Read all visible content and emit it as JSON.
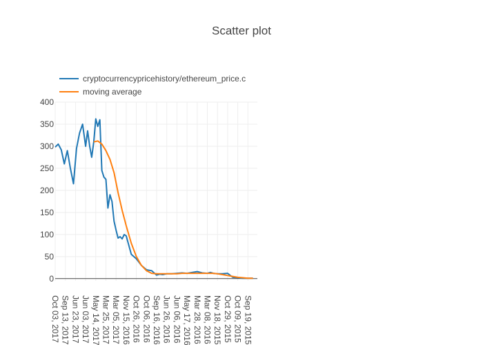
{
  "chart_data": {
    "type": "line",
    "title": "Scatter plot",
    "xlabel": "",
    "ylabel": "",
    "x_axis_reversed": true,
    "x_tick_labels": [
      "Oct 03, 2017",
      "Sep 13, 2017",
      "Jun 23, 2017",
      "Jun 03, 2017",
      "May 14, 2017",
      "Mar 25, 2017",
      "Mar 05, 2017",
      "Nov 15, 2016",
      "Oct 26, 2016",
      "Oct 06, 2016",
      "Sep 16, 2016",
      "Jun 26, 2016",
      "Jun 06, 2016",
      "May 17, 2016",
      "Mar 28, 2016",
      "Mar 08, 2016",
      "Nov 18, 2015",
      "Oct 29, 2015",
      "Oct 09, 2015",
      "Sep 19, 2015"
    ],
    "y_ticks": [
      0,
      50,
      100,
      150,
      200,
      250,
      300,
      350,
      400
    ],
    "ylim": [
      -5,
      400
    ],
    "grid": true,
    "legend_position": "top-left",
    "series": [
      {
        "name": "cryptocurrencypricehistory/ethereum_price.c",
        "color": "#1f77b4",
        "x_index": [
          0,
          0.3,
          0.6,
          0.9,
          1.2,
          1.5,
          1.8,
          2.1,
          2.4,
          2.7,
          3.0,
          3.2,
          3.4,
          3.6,
          3.8,
          4.0,
          4.2,
          4.4,
          4.6,
          4.8,
          5.0,
          5.2,
          5.4,
          5.6,
          5.8,
          6.0,
          6.2,
          6.4,
          6.6,
          6.8,
          7.0,
          7.5,
          8.0,
          8.5,
          9.0,
          9.5,
          10.0,
          10.3,
          10.6,
          11.0,
          11.5,
          12.0,
          12.5,
          13.0,
          13.5,
          14.0,
          14.5,
          15.0,
          15.3,
          15.6,
          16.0,
          16.5,
          17.0,
          17.5,
          18.0,
          18.5,
          19.0,
          19.5
        ],
        "values": [
          298,
          305,
          292,
          260,
          290,
          250,
          215,
          295,
          330,
          350,
          300,
          335,
          300,
          275,
          310,
          362,
          345,
          360,
          245,
          230,
          225,
          160,
          190,
          175,
          130,
          110,
          92,
          95,
          90,
          100,
          97,
          55,
          45,
          30,
          20,
          18,
          8,
          10,
          9,
          11,
          11,
          12,
          13,
          12,
          14,
          16,
          13,
          12,
          14,
          12,
          11,
          11,
          12,
          3,
          2,
          1,
          1,
          1
        ]
      },
      {
        "name": "moving average",
        "color": "#ff7f0e",
        "x_index": [
          3.8,
          4.2,
          4.6,
          5.0,
          5.4,
          5.8,
          6.2,
          6.6,
          7.0,
          7.5,
          8.0,
          8.5,
          9.0,
          9.5,
          10.0,
          10.5,
          11.0,
          11.5,
          12.0,
          12.5,
          13.0,
          13.5,
          14.0,
          14.5,
          15.0,
          15.5,
          16.0,
          16.5,
          17.0,
          17.5,
          18.0,
          18.5,
          19.0,
          19.5
        ],
        "values": [
          310,
          312,
          305,
          290,
          270,
          240,
          195,
          155,
          120,
          80,
          50,
          30,
          18,
          12,
          11,
          11,
          11,
          11,
          11,
          12,
          12,
          12,
          12,
          12,
          12,
          12,
          11,
          9,
          7,
          5,
          3,
          2,
          1,
          1
        ]
      }
    ]
  }
}
